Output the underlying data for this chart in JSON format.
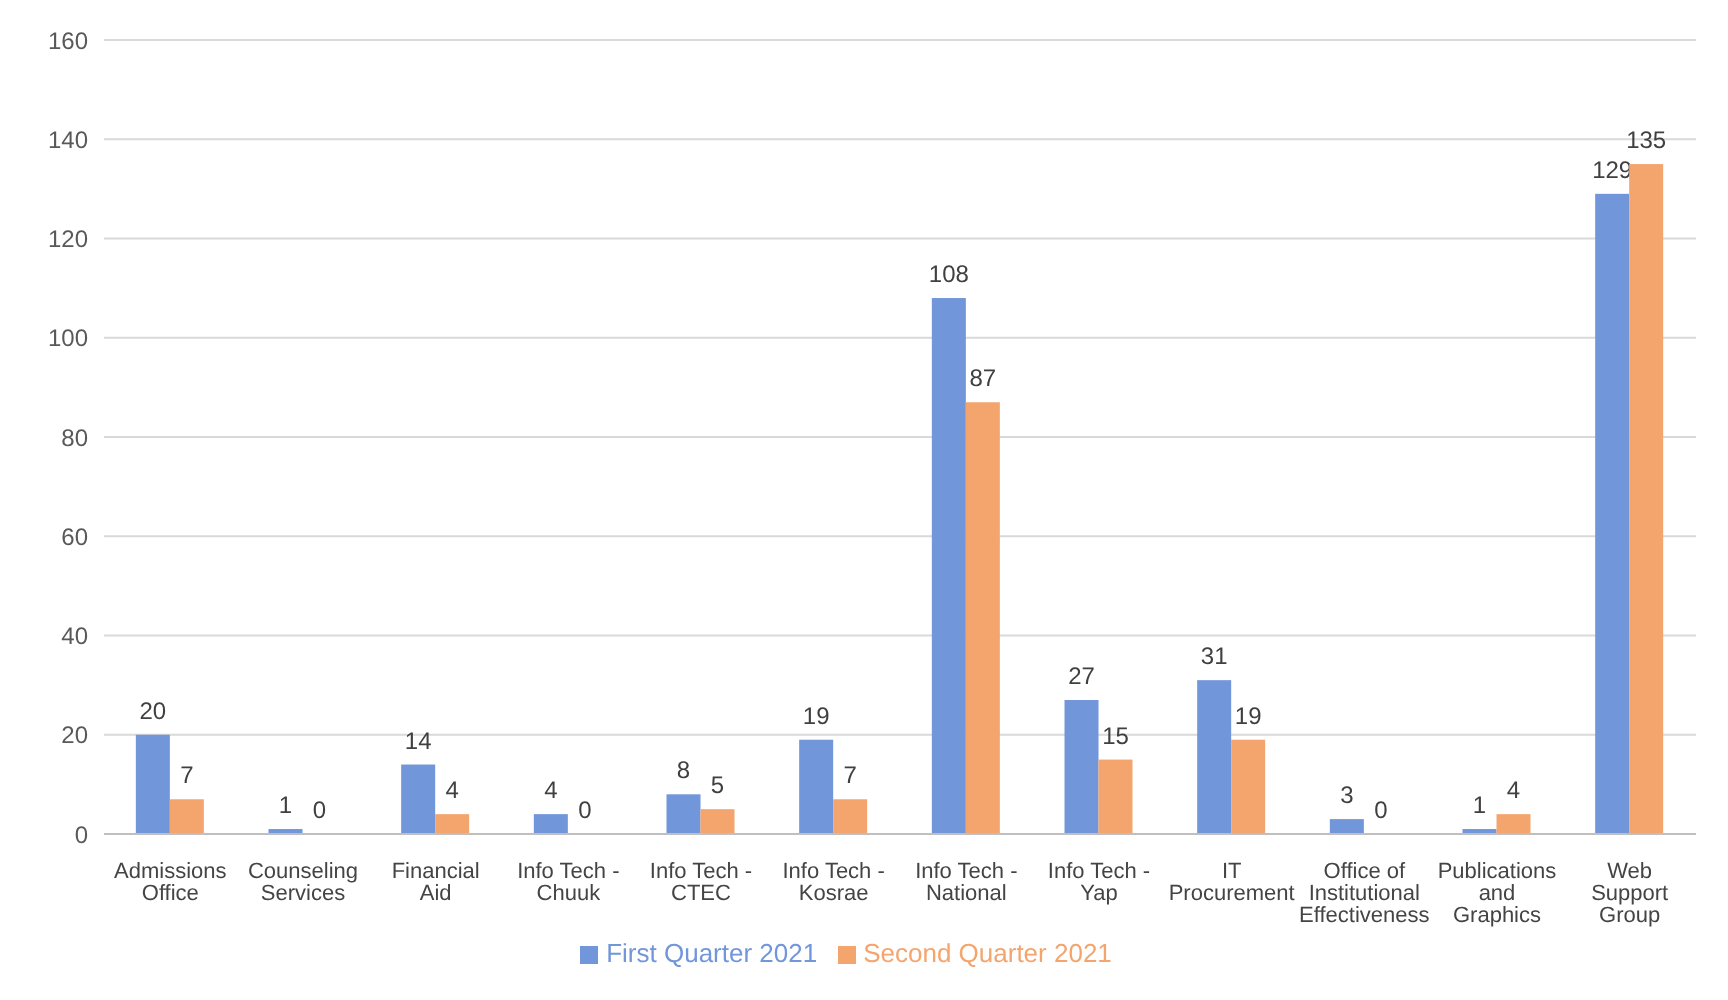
{
  "chart_data": {
    "type": "bar",
    "categories": [
      "Admissions Office",
      "Counseling Services",
      "Financial Aid",
      "Info Tech - Chuuk",
      "Info Tech - CTEC",
      "Info Tech - Kosrae",
      "Info Tech - National",
      "Info Tech - Yap",
      "IT Procurement",
      "Office of Institutional Effectiveness",
      "Publications and Graphics",
      "Web Support Group"
    ],
    "series": [
      {
        "name": "First Quarter 2021",
        "color": "#7196d9",
        "values": [
          20,
          1,
          14,
          4,
          8,
          19,
          108,
          27,
          31,
          3,
          1,
          129
        ]
      },
      {
        "name": "Second Quarter 2021",
        "color": "#f4a56e",
        "values": [
          7,
          0,
          4,
          0,
          5,
          7,
          87,
          15,
          19,
          0,
          4,
          135
        ]
      }
    ],
    "ylim": [
      0,
      160
    ],
    "yticks": [
      0,
      20,
      40,
      60,
      80,
      100,
      120,
      140,
      160
    ],
    "grid": "y",
    "legend": "bottom",
    "data_labels": true
  }
}
